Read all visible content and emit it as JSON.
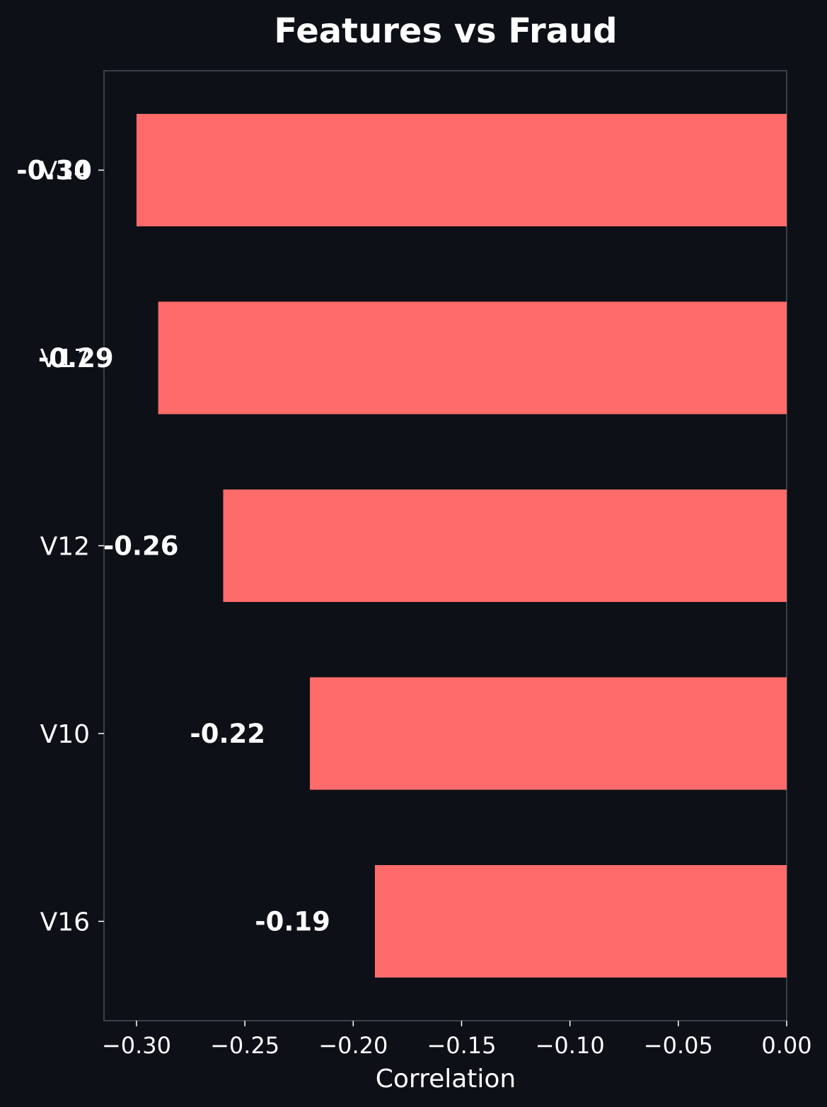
{
  "chart_data": {
    "type": "bar",
    "orientation": "horizontal",
    "title": "Features vs Fraud",
    "xlabel": "Correlation",
    "ylabel": "",
    "categories": [
      "V14",
      "V17",
      "V12",
      "V10",
      "V16"
    ],
    "values": [
      -0.3,
      -0.29,
      -0.26,
      -0.22,
      -0.19
    ],
    "data_labels": [
      "-0.30",
      "-0.29",
      "-0.26",
      "-0.22",
      "-0.19"
    ],
    "xlim": [
      -0.315,
      0.0
    ],
    "xticks": [
      -0.3,
      -0.25,
      -0.2,
      -0.15,
      -0.1,
      -0.05,
      0.0
    ],
    "xtick_labels": [
      "−0.30",
      "−0.25",
      "−0.20",
      "−0.15",
      "−0.10",
      "−0.05",
      "0.00"
    ],
    "grid": false,
    "colors": {
      "background": "#0e1017",
      "bar": "#ff6b6b",
      "text": "#ffffff",
      "axes": "#3a3f4a"
    }
  }
}
